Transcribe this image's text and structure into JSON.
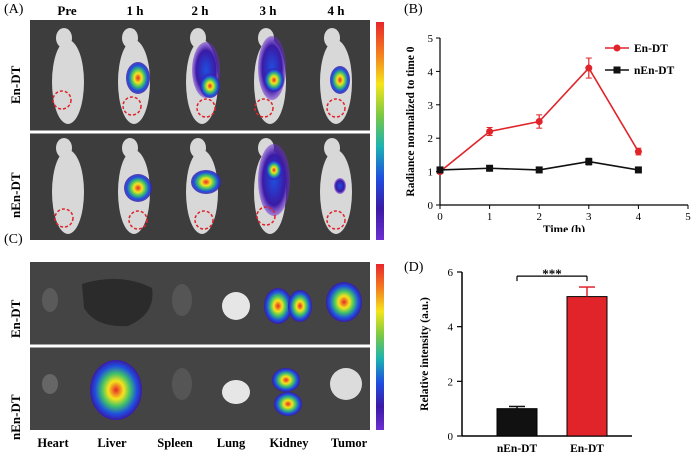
{
  "panels": {
    "a": "(A)",
    "b": "(B)",
    "c": "(C)",
    "d": "(D)"
  },
  "panel_a": {
    "timepoints": [
      "Pre",
      "1 h",
      "2 h",
      "3 h",
      "4 h"
    ],
    "rows": [
      "En-DT",
      "nEn-DT"
    ]
  },
  "panel_c": {
    "rows": [
      "En-DT",
      "nEn-DT"
    ],
    "organs": [
      "Heart",
      "Liver",
      "Spleen",
      "Lung",
      "Kidney",
      "Tumor"
    ]
  },
  "colors": {
    "en_dt": "#e0242a",
    "nen_dt": "#111111"
  },
  "chart_data": [
    {
      "id": "B",
      "type": "line",
      "xlabel": "Time (h)",
      "ylabel": "Radiance normalized to time 0",
      "xlim": [
        0,
        5
      ],
      "ylim": [
        0,
        5
      ],
      "xticks": [
        0,
        1,
        2,
        3,
        4,
        5
      ],
      "yticks": [
        0,
        1,
        2,
        3,
        4,
        5
      ],
      "series": [
        {
          "name": "En-DT",
          "x": [
            0,
            1,
            2,
            3,
            4
          ],
          "values": [
            1.0,
            2.2,
            2.5,
            4.1,
            1.6
          ],
          "err": [
            0.05,
            0.12,
            0.2,
            0.3,
            0.1
          ]
        },
        {
          "name": "nEn-DT",
          "x": [
            0,
            1,
            2,
            3,
            4
          ],
          "values": [
            1.05,
            1.1,
            1.05,
            1.3,
            1.05
          ],
          "err": [
            0.04,
            0.05,
            0.05,
            0.1,
            0.05
          ]
        }
      ],
      "legend": "top-right"
    },
    {
      "id": "D",
      "type": "bar",
      "categories": [
        "nEn-DT",
        "En-DT"
      ],
      "values": [
        1.0,
        5.1
      ],
      "err": [
        0.08,
        0.35
      ],
      "ylabel": "Relative  intensity (a.u.)",
      "ylim": [
        0,
        6
      ],
      "yticks": [
        0,
        2,
        4,
        6
      ],
      "significance": "***"
    }
  ]
}
